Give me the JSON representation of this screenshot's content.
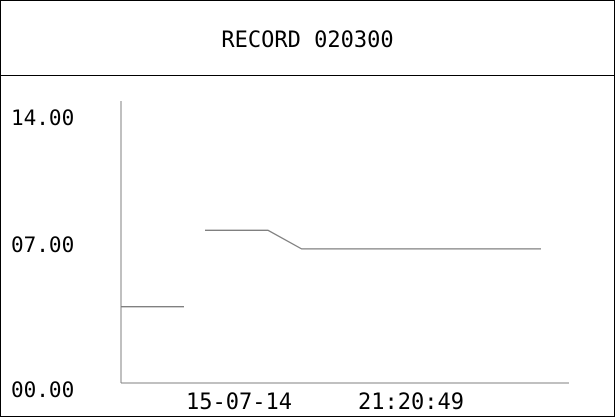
{
  "header": {
    "title": "RECORD 020300"
  },
  "chart_data": {
    "type": "line",
    "title": "RECORD 020300",
    "y_ticks": [
      "14.00",
      "07.00",
      "00.00"
    ],
    "ylim": [
      0,
      14
    ],
    "x_labels": {
      "date": "15-07-14",
      "time": "21:20:49"
    },
    "series": [
      {
        "segments": [
          [
            [
              0.0,
              3.9
            ],
            [
              0.15,
              3.9
            ]
          ],
          [
            [
              0.2,
              7.8
            ],
            [
              0.35,
              7.8
            ],
            [
              0.43,
              6.85
            ],
            [
              1.0,
              6.85
            ]
          ]
        ]
      }
    ],
    "grid": false
  },
  "colors": {
    "line": "#808080",
    "axis": "#808080",
    "text": "#000000",
    "background": "#ffffff"
  }
}
